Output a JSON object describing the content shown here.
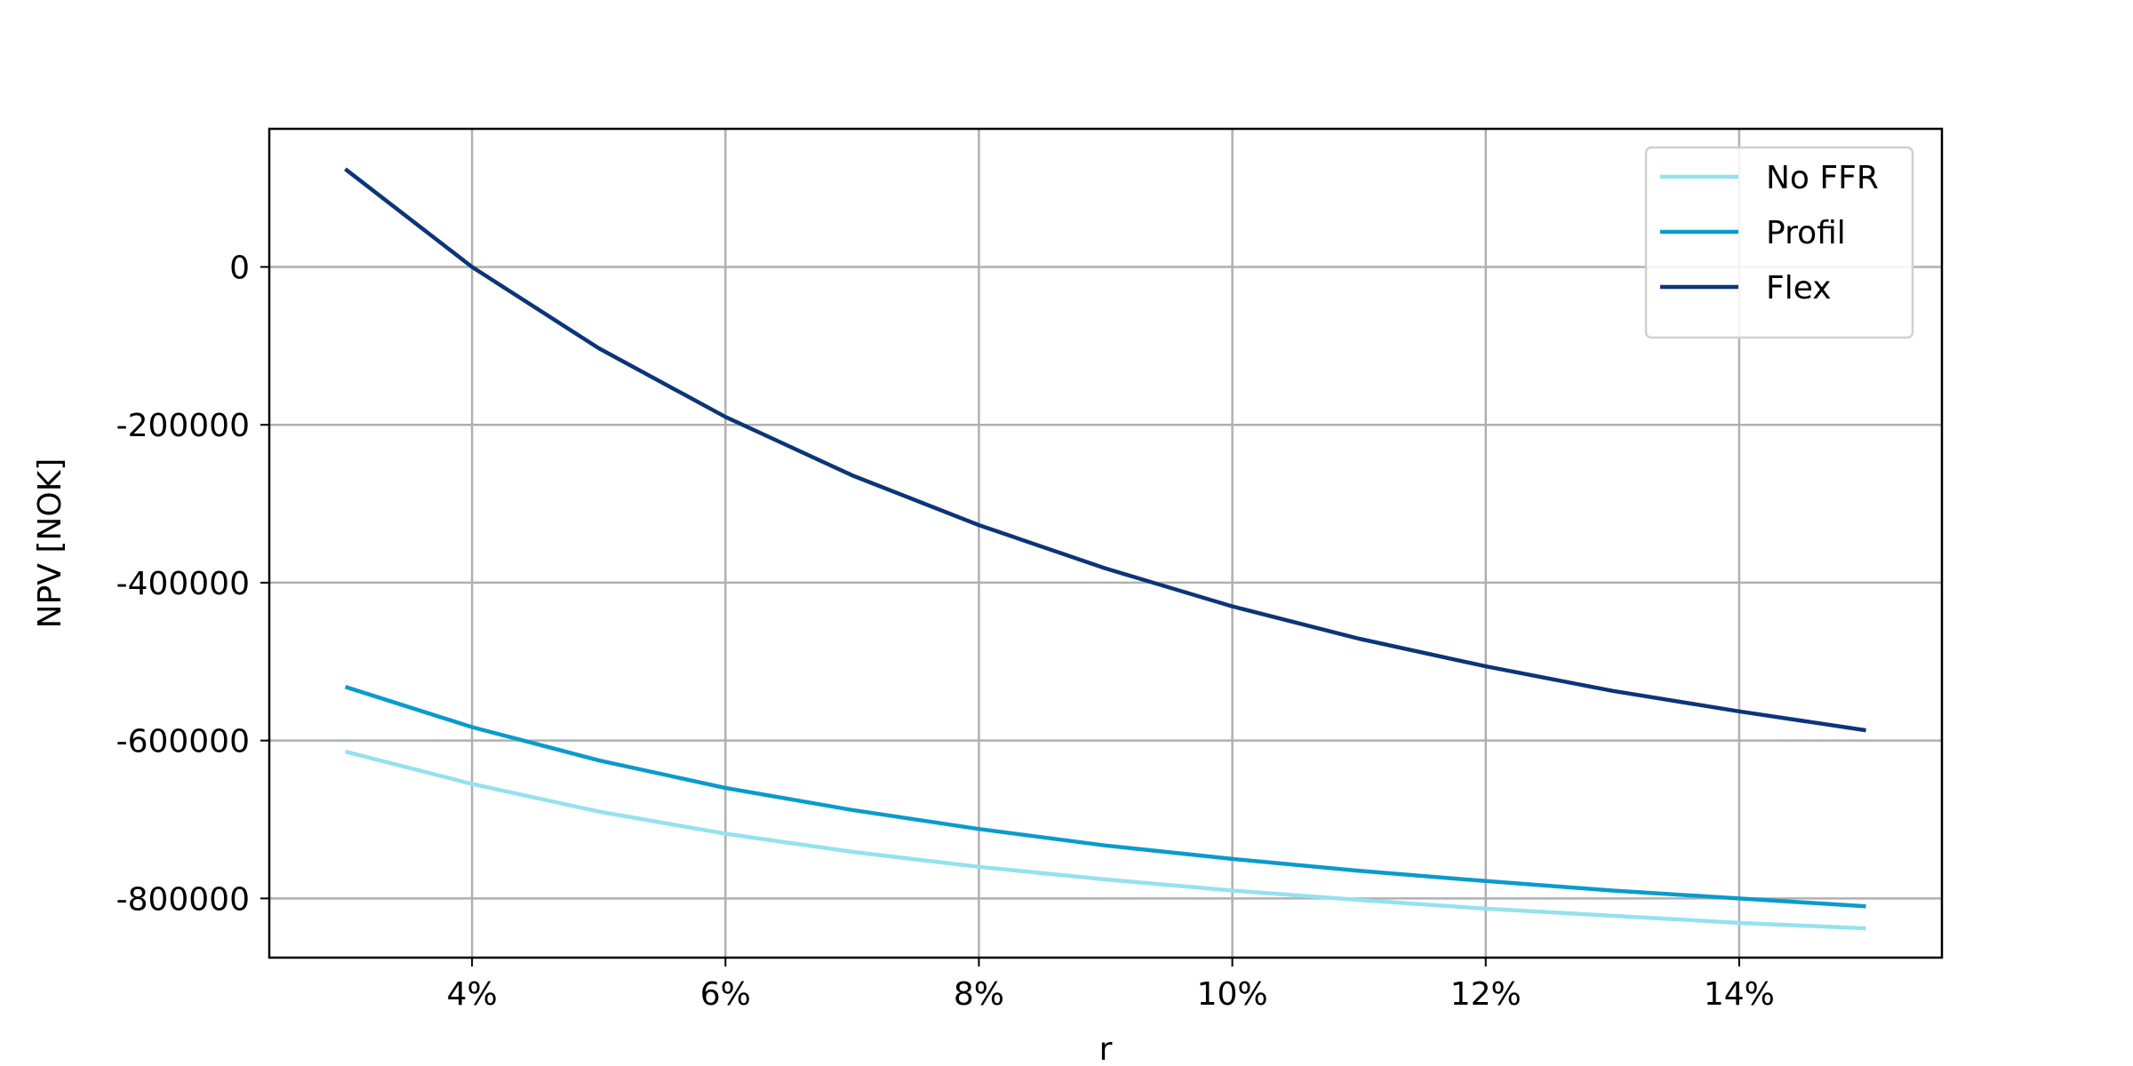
{
  "chart_data": {
    "type": "line",
    "title": "",
    "xlabel": "r",
    "ylabel": "NPV [NOK]",
    "x": [
      0.03,
      0.04,
      0.05,
      0.06,
      0.07,
      0.08,
      0.09,
      0.1,
      0.11,
      0.12,
      0.13,
      0.14,
      0.15
    ],
    "xlim": [
      0.024,
      0.156
    ],
    "ylim": [
      -875000,
      175000
    ],
    "x_ticks": [
      0.04,
      0.06,
      0.08,
      0.1,
      0.12,
      0.14
    ],
    "x_tick_labels": [
      "4%",
      "6%",
      "8%",
      "10%",
      "12%",
      "14%"
    ],
    "y_ticks": [
      0,
      -200000,
      -400000,
      -600000,
      -800000
    ],
    "y_tick_labels": [
      "0",
      "-200000",
      "-400000",
      "-600000",
      "-800000"
    ],
    "grid": true,
    "legend_position": "top-right",
    "series": [
      {
        "name": "No FFR",
        "color": "#95e1f0",
        "values": [
          -614000,
          -655000,
          -690000,
          -718000,
          -741000,
          -760000,
          -776000,
          -790000,
          -802000,
          -813000,
          -822000,
          -831000,
          -838000
        ]
      },
      {
        "name": "Profil",
        "color": "#0a9bcc",
        "values": [
          -532000,
          -583000,
          -625000,
          -660000,
          -688000,
          -712000,
          -733000,
          -750000,
          -765000,
          -778000,
          -790000,
          -800000,
          -810000
        ]
      },
      {
        "name": "Flex",
        "color": "#0c3578",
        "values": [
          124000,
          0,
          -103000,
          -190000,
          -264000,
          -327000,
          -382000,
          -430000,
          -471000,
          -506000,
          -537000,
          -563000,
          -587000
        ]
      }
    ]
  }
}
